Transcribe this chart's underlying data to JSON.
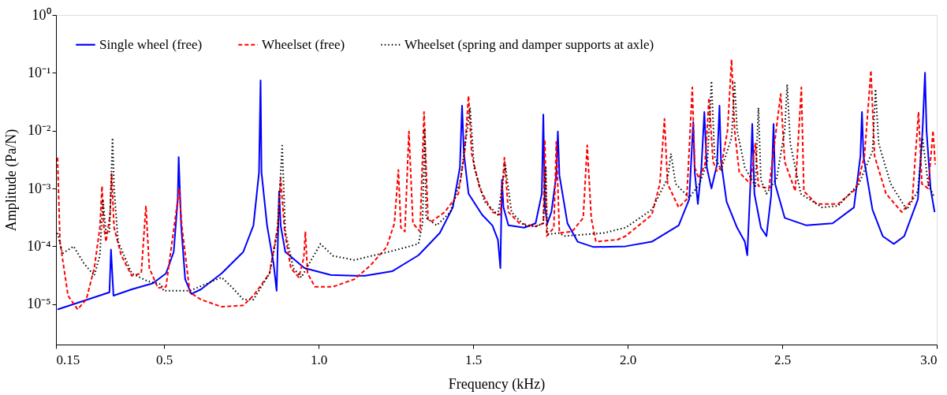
{
  "chart_data": {
    "type": "line",
    "xlabel": "Frequency (kHz)",
    "ylabel": "Amplitude (Pa/N)",
    "log": "y",
    "xlim": [
      0.15,
      3.0
    ],
    "ylim": [
      2e-06,
      1
    ],
    "xticks": [
      0.15,
      0.5,
      {
        "value": 1.0,
        "label": "1.0"
      },
      1.5,
      {
        "value": 2.0,
        "label": "2.0"
      },
      2.5,
      {
        "value": 3.0,
        "label": "3.0"
      }
    ],
    "yticks": [
      {
        "value": 1,
        "label": "10⁰"
      },
      {
        "value": 0.1,
        "label": "10⁻¹"
      },
      {
        "value": 0.01,
        "label": "10⁻²"
      },
      {
        "value": 0.001,
        "label": "10⁻³"
      },
      {
        "value": 0.0001,
        "label": "10⁻⁴"
      },
      {
        "value": 1e-05,
        "label": "10⁻⁵"
      }
    ],
    "grid": false,
    "legend": "top left",
    "marker": "none",
    "series": [
      {
        "name": "Single wheel (free)",
        "color": "#0000ff",
        "line_style": "solid",
        "x": [
          0.155,
          0.323,
          0.328,
          0.336,
          0.395,
          0.464,
          0.506,
          0.531,
          0.544,
          0.547,
          0.555,
          0.568,
          0.588,
          0.619,
          0.686,
          0.756,
          0.789,
          0.807,
          0.812,
          0.815,
          0.833,
          0.854,
          0.864,
          0.872,
          0.877,
          0.892,
          0.954,
          1.039,
          1.116,
          1.15,
          1.238,
          1.323,
          1.392,
          1.434,
          1.457,
          1.464,
          1.47,
          1.485,
          1.529,
          1.562,
          1.58,
          1.588,
          1.593,
          1.598,
          1.614,
          1.665,
          1.702,
          1.722,
          1.727,
          1.732,
          1.74,
          1.753,
          1.769,
          1.774,
          1.779,
          1.805,
          1.838,
          1.89,
          1.993,
          2.078,
          2.165,
          2.199,
          2.212,
          2.217,
          2.227,
          2.238,
          2.248,
          2.256,
          2.271,
          2.289,
          2.297,
          2.302,
          2.32,
          2.354,
          2.379,
          2.387,
          2.397,
          2.403,
          2.41,
          2.431,
          2.449,
          2.464,
          2.472,
          2.477,
          2.508,
          2.578,
          2.663,
          2.732,
          2.753,
          2.758,
          2.763,
          2.792,
          2.825,
          2.861,
          2.895,
          2.939,
          2.954,
          2.962,
          2.967,
          2.98,
          2.993
        ],
        "values": [
          8.1e-06,
          1.6e-05,
          8.8e-05,
          1.4e-05,
          1.8e-05,
          2.3e-05,
          3.4e-05,
          8e-05,
          0.00065,
          0.0035,
          0.00023,
          2.7e-05,
          1.5e-05,
          1.8e-05,
          3.4e-05,
          8e-05,
          0.00023,
          0.0019,
          0.074,
          0.0019,
          0.00023,
          5.1e-05,
          1.7e-05,
          0.00089,
          0.00023,
          8e-05,
          4.2e-05,
          3.2e-05,
          3.1e-05,
          3.1e-05,
          3.7e-05,
          7e-05,
          0.00017,
          0.00047,
          0.0023,
          0.027,
          0.004,
          0.00081,
          0.00035,
          0.00023,
          0.00013,
          4.2e-05,
          0.0014,
          0.00047,
          0.00023,
          0.00021,
          0.00025,
          0.00081,
          0.019,
          0.00047,
          0.00025,
          0.00039,
          0.0017,
          0.0097,
          0.0017,
          0.00025,
          0.00012,
          9.7e-05,
          0.0001,
          0.00012,
          0.00023,
          0.00065,
          0.014,
          0.0019,
          0.00054,
          0.0021,
          0.021,
          0.0023,
          0.001,
          0.0026,
          0.027,
          0.0029,
          0.00059,
          0.00021,
          0.00012,
          7e-05,
          0.0012,
          0.013,
          0.00081,
          0.00021,
          0.00015,
          0.00074,
          0.013,
          0.0012,
          0.00031,
          0.00023,
          0.00025,
          0.00047,
          0.0036,
          0.021,
          0.0036,
          0.00043,
          0.00015,
          0.00011,
          0.00015,
          0.00065,
          0.01,
          0.1,
          0.01,
          0.001,
          0.00039
        ]
      },
      {
        "name": "Wheelset (free)",
        "color": "#ff0000",
        "line_style": "dashed",
        "x": [
          0.155,
          0.163,
          0.189,
          0.22,
          0.248,
          0.274,
          0.292,
          0.299,
          0.305,
          0.312,
          0.325,
          0.33,
          0.338,
          0.361,
          0.395,
          0.426,
          0.441,
          0.452,
          0.48,
          0.506,
          0.549,
          0.557,
          0.583,
          0.619,
          0.686,
          0.756,
          0.789,
          0.841,
          0.867,
          0.877,
          0.89,
          0.91,
          0.936,
          0.952,
          0.957,
          0.964,
          0.988,
          1.047,
          1.116,
          1.168,
          1.22,
          1.245,
          1.258,
          1.266,
          1.279,
          1.292,
          1.305,
          1.328,
          1.341,
          1.354,
          1.366,
          1.408,
          1.452,
          1.472,
          1.485,
          1.495,
          1.521,
          1.562,
          1.588,
          1.601,
          1.614,
          1.65,
          1.702,
          1.727,
          1.732,
          1.738,
          1.761,
          1.769,
          1.779,
          1.82,
          1.856,
          1.869,
          1.882,
          1.897,
          1.967,
          1.993,
          2.078,
          2.104,
          2.119,
          2.129,
          2.165,
          2.191,
          2.209,
          2.217,
          2.23,
          2.25,
          2.263,
          2.276,
          2.289,
          2.302,
          2.323,
          2.336,
          2.346,
          2.361,
          2.397,
          2.413,
          2.423,
          2.457,
          2.495,
          2.508,
          2.542,
          2.562,
          2.57,
          2.611,
          2.681,
          2.74,
          2.766,
          2.787,
          2.799,
          2.836,
          2.887,
          2.921,
          2.941,
          2.952,
          2.972,
          2.988,
          2.995
        ],
        "values": [
          0.0034,
          0.00012,
          1.4e-05,
          8.1e-06,
          1.2e-05,
          4.2e-05,
          0.00021,
          0.0011,
          0.00021,
          0.00012,
          0.00035,
          0.0018,
          0.00021,
          7e-05,
          3.1e-05,
          3.4e-05,
          0.0005,
          4.2e-05,
          1.9e-05,
          2e-05,
          0.001,
          0.00023,
          1.6e-05,
          1.2e-05,
          9e-06,
          9.5e-06,
          1.4e-05,
          3.4e-05,
          0.00021,
          0.0015,
          0.00018,
          4.2e-05,
          2.9e-05,
          6.4e-05,
          0.00018,
          3.4e-05,
          2e-05,
          2e-05,
          2.7e-05,
          4.7e-05,
          9.7e-05,
          0.00025,
          0.0021,
          0.00021,
          0.00018,
          0.0097,
          0.00025,
          0.00018,
          0.021,
          0.00029,
          0.00027,
          0.00039,
          0.00081,
          0.004,
          0.04,
          0.004,
          0.001,
          0.00039,
          0.00035,
          0.0034,
          0.00039,
          0.00025,
          0.00022,
          0.00025,
          0.007,
          0.00015,
          0.00021,
          0.0064,
          0.00017,
          0.00018,
          0.00031,
          0.0056,
          0.00031,
          0.00012,
          0.00013,
          0.00015,
          0.00035,
          0.0012,
          0.016,
          0.0012,
          0.00047,
          0.00065,
          0.056,
          0.0023,
          0.0015,
          0.0026,
          0.037,
          0.0029,
          0.002,
          0.0023,
          0.01,
          0.17,
          0.01,
          0.0019,
          0.0012,
          0.006,
          0.0011,
          0.001,
          0.043,
          0.0029,
          0.0009,
          0.056,
          0.0009,
          0.00054,
          0.00054,
          0.001,
          0.0036,
          0.11,
          0.0036,
          0.00081,
          0.00039,
          0.00065,
          0.021,
          0.0012,
          0.001,
          0.01,
          0.0026
        ]
      },
      {
        "name": "Wheelset (spring and damper supports at axle)",
        "color": "#000000",
        "line_style": "dotted",
        "x": [
          0.155,
          0.171,
          0.207,
          0.24,
          0.274,
          0.292,
          0.302,
          0.312,
          0.323,
          0.328,
          0.333,
          0.338,
          0.351,
          0.395,
          0.446,
          0.49,
          0.498,
          0.583,
          0.686,
          0.722,
          0.756,
          0.789,
          0.841,
          0.867,
          0.882,
          0.892,
          0.918,
          0.944,
          0.97,
          1.006,
          1.047,
          1.116,
          1.238,
          1.323,
          1.336,
          1.343,
          1.348,
          1.382,
          1.426,
          1.459,
          1.49,
          1.503,
          1.537,
          1.58,
          1.604,
          1.624,
          1.665,
          1.702,
          1.727,
          1.735,
          1.74,
          1.779,
          1.794,
          1.923,
          1.993,
          2.078,
          2.129,
          2.14,
          2.155,
          2.199,
          2.232,
          2.258,
          2.271,
          2.281,
          2.302,
          2.336,
          2.346,
          2.354,
          2.379,
          2.413,
          2.423,
          2.431,
          2.449,
          2.482,
          2.508,
          2.516,
          2.526,
          2.56,
          2.629,
          2.681,
          2.748,
          2.792,
          2.802,
          2.812,
          2.851,
          2.903,
          2.939,
          2.954,
          2.972,
          2.99
        ],
        "values": [
          0.00017,
          7.5e-05,
          0.0001,
          5.1e-05,
          3.1e-05,
          7e-05,
          0.00065,
          0.00017,
          0.00018,
          0.0011,
          0.0075,
          0.001,
          0.00012,
          3.4e-05,
          2.5e-05,
          2.2e-05,
          1.7e-05,
          1.7e-05,
          2.9e-05,
          1.9e-05,
          1.2e-05,
          1.2e-05,
          3.4e-05,
          0.00018,
          0.0055,
          0.00018,
          4.2e-05,
          2.9e-05,
          5.1e-05,
          0.00011,
          6.8e-05,
          5.8e-05,
          8.3e-05,
          0.00011,
          0.00025,
          0.011,
          0.00031,
          0.00023,
          0.00039,
          0.0014,
          0.025,
          0.0023,
          0.00059,
          0.00035,
          0.0025,
          0.00039,
          0.00023,
          0.00022,
          0.00025,
          0.0023,
          0.00016,
          0.00017,
          0.00015,
          0.00017,
          0.00021,
          0.00043,
          0.0015,
          0.004,
          0.0012,
          0.00069,
          0.0012,
          0.0029,
          0.072,
          0.0036,
          0.0021,
          0.0075,
          0.067,
          0.01,
          0.0023,
          0.0011,
          0.025,
          0.0014,
          0.00081,
          0.0015,
          0.01,
          0.063,
          0.006,
          0.00081,
          0.00047,
          0.0005,
          0.0012,
          0.0044,
          0.052,
          0.006,
          0.0012,
          0.00043,
          0.0009,
          0.0075,
          0.0012,
          0.00074
        ]
      }
    ]
  }
}
